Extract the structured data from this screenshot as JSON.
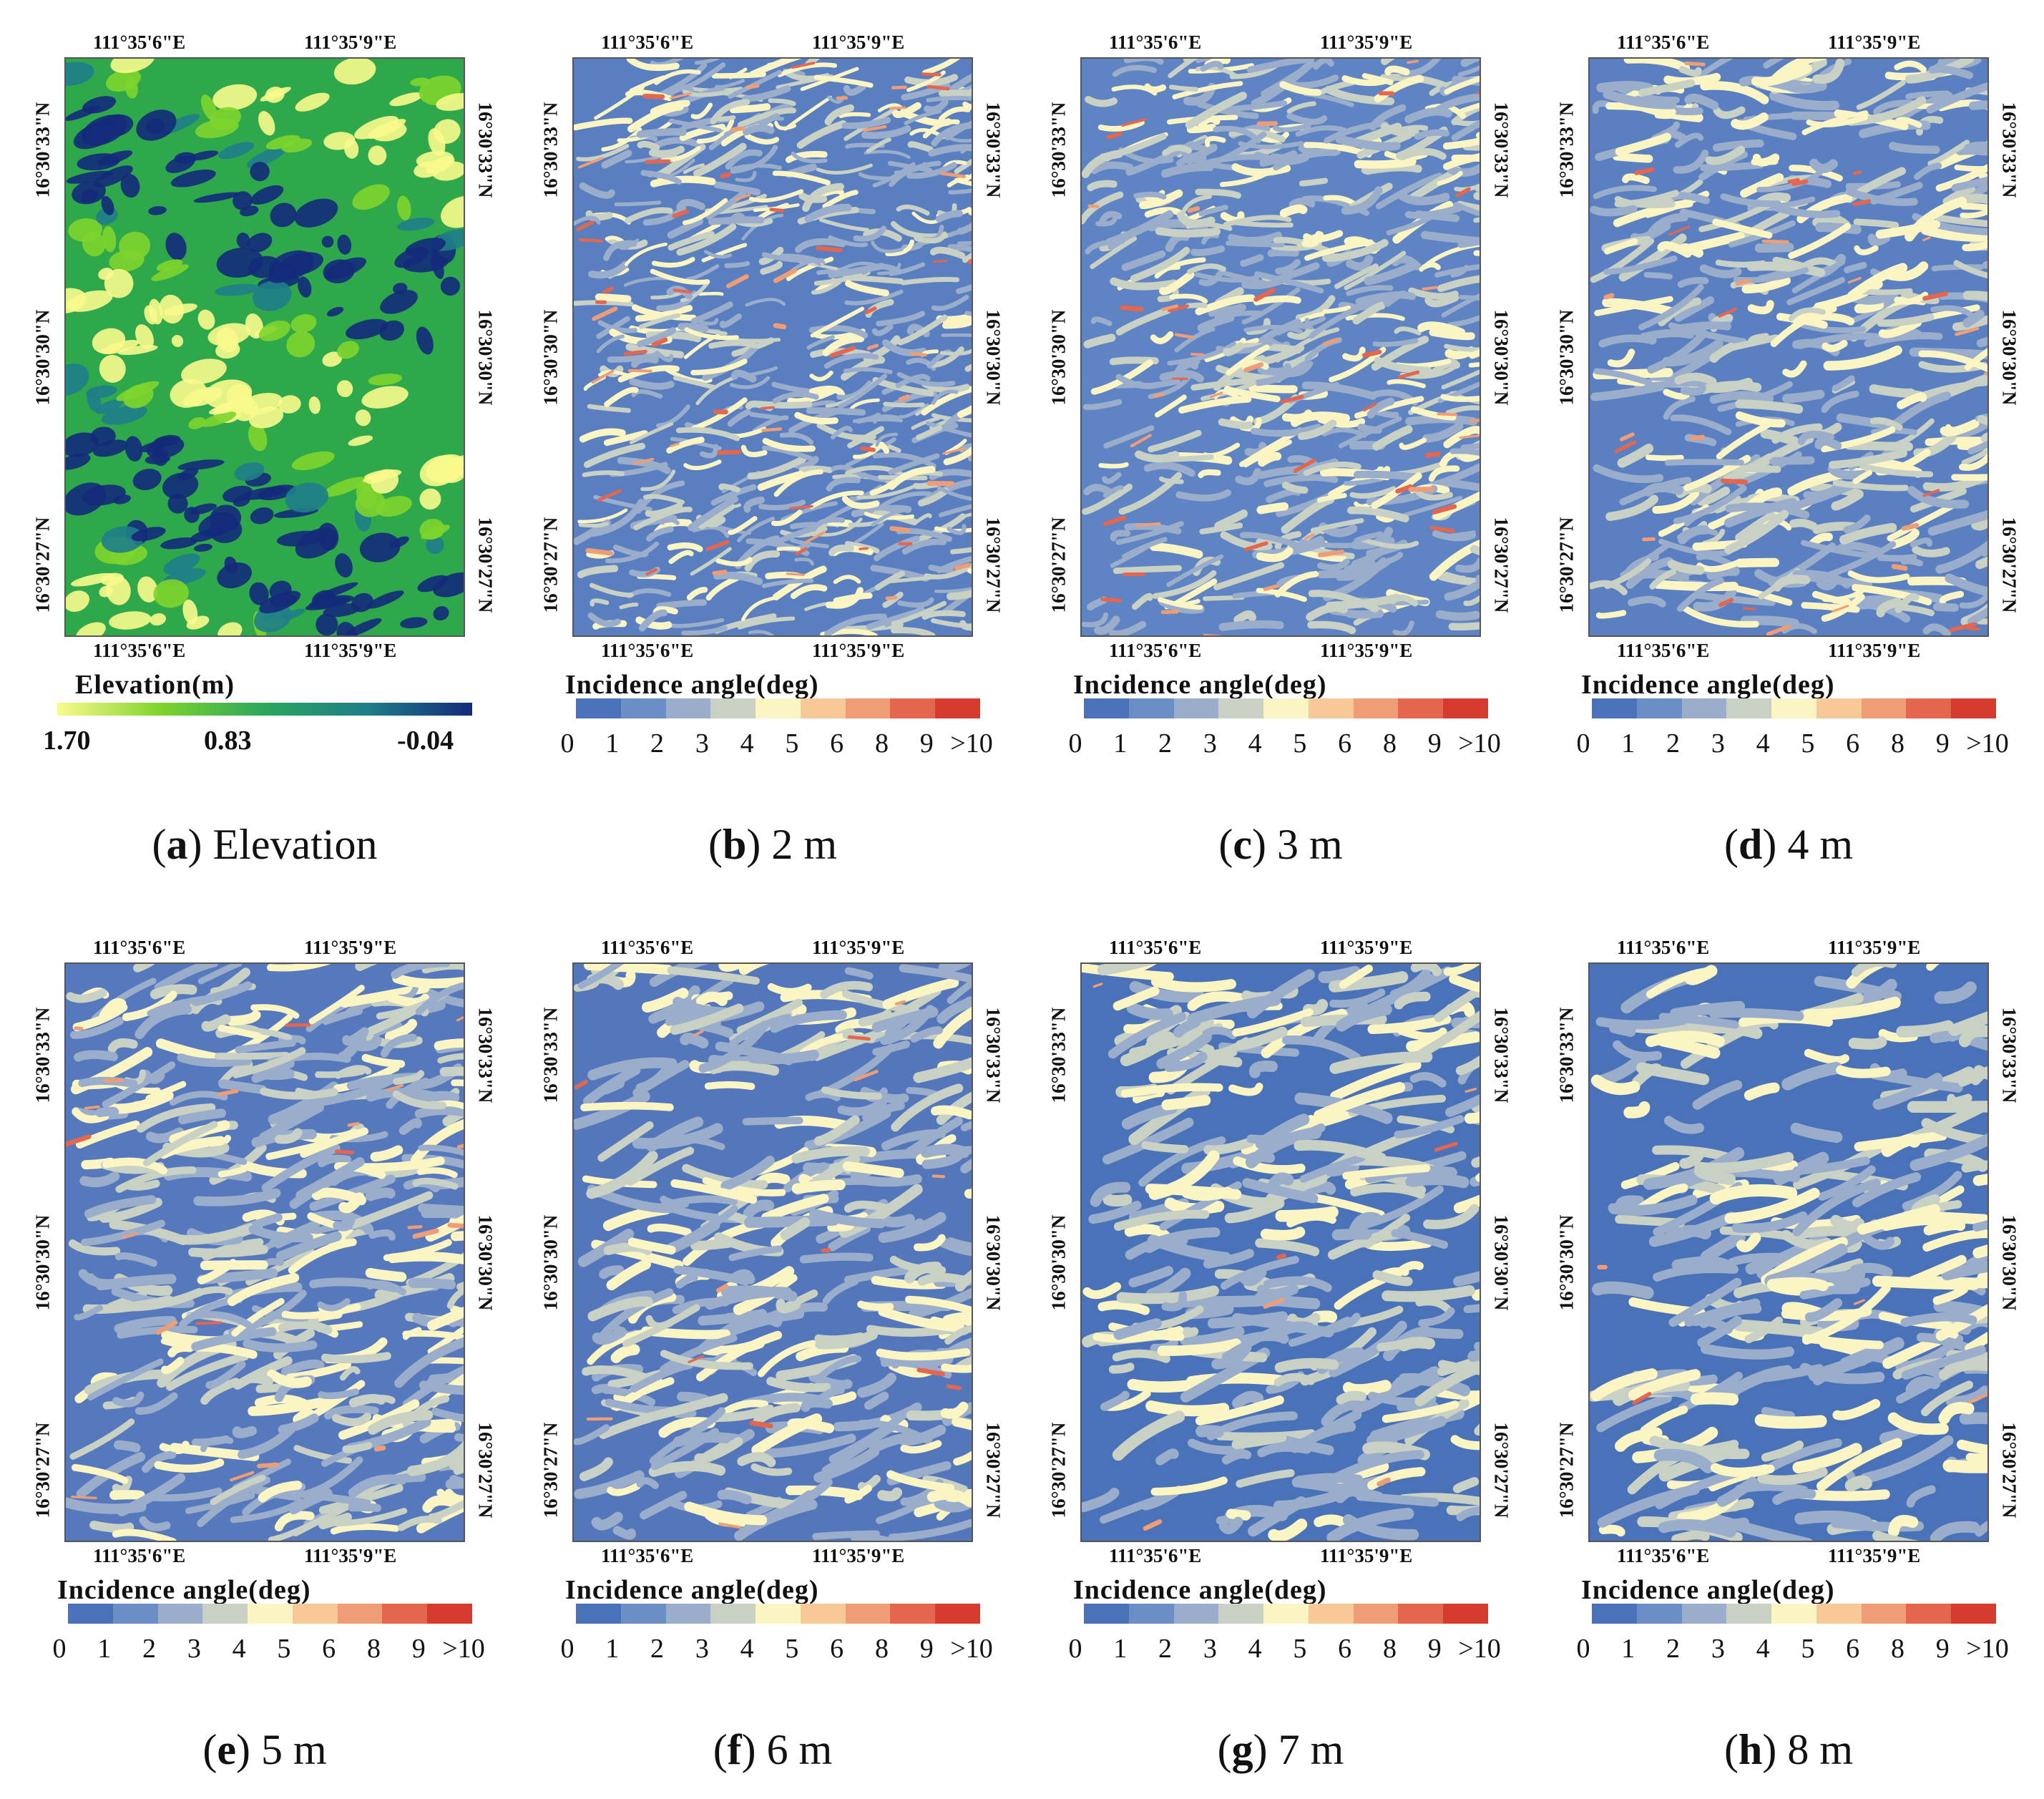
{
  "colors": {
    "incidence_classes": [
      "#4a72b8",
      "#6b8ec6",
      "#9aaecb",
      "#c9d1c5",
      "#fbf5c4",
      "#f7c898",
      "#ef9d76",
      "#e5664f",
      "#d73a2f"
    ],
    "elevation_gradient": [
      "#fafa8c",
      "#7ed42c",
      "#2aa65c",
      "#1f7d8a",
      "#142a7a"
    ]
  },
  "ticks": {
    "lon_left": "111°35'6\"E",
    "lon_right": "111°35'9\"E",
    "lat_top": "16°30'33\"N",
    "lat_mid": "16°30'30\"N",
    "lat_bottom": "16°30'27\"N"
  },
  "legend": {
    "elevation_title": "Elevation(m)",
    "elevation_max": "1.70",
    "elevation_mid": "0.83",
    "elevation_min": "-0.04",
    "incidence_title": "Incidence angle(deg)",
    "incidence_labels": [
      "0",
      "1",
      "2",
      "3",
      "4",
      "5",
      "6",
      "8",
      "9",
      ">10"
    ]
  },
  "panels": [
    {
      "letter": "a",
      "label": "Elevation",
      "type": "elevation"
    },
    {
      "letter": "b",
      "label": "2 m",
      "type": "incidence",
      "bgcolor": "#5a7fc0",
      "level": 0.95
    },
    {
      "letter": "c",
      "label": "3 m",
      "type": "incidence",
      "bgcolor": "#5f84c3",
      "level": 0.8
    },
    {
      "letter": "d",
      "label": "4 m",
      "type": "incidence",
      "bgcolor": "#5b80c2",
      "level": 0.65
    },
    {
      "letter": "e",
      "label": "5 m",
      "type": "incidence",
      "bgcolor": "#5679bd",
      "level": 0.55
    },
    {
      "letter": "f",
      "label": "6 m",
      "type": "incidence",
      "bgcolor": "#5477bc",
      "level": 0.45
    },
    {
      "letter": "g",
      "label": "7 m",
      "type": "incidence",
      "bgcolor": "#4a72b8",
      "level": 0.32
    },
    {
      "letter": "h",
      "label": "8 m",
      "type": "incidence",
      "bgcolor": "#4a72b8",
      "level": 0.25
    }
  ]
}
